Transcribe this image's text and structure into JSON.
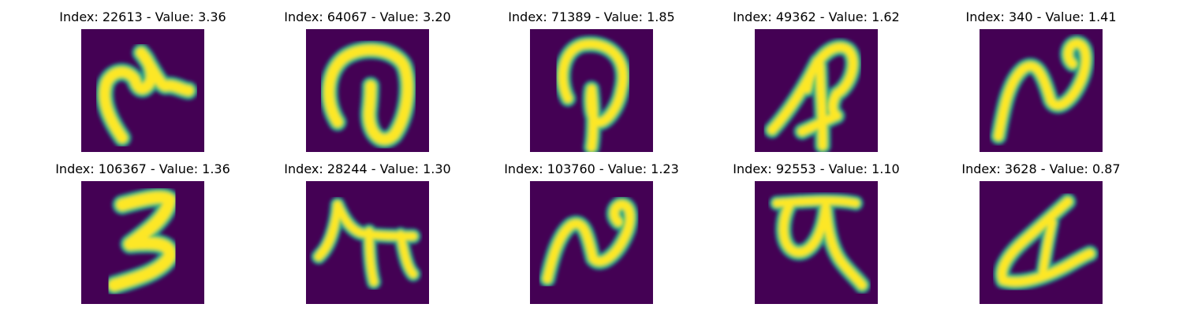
{
  "colors": {
    "background": "#440154",
    "stroke_outer": "#21918c",
    "stroke_mid": "#5ec962",
    "stroke_core": "#fde725"
  },
  "panels": [
    {
      "title": "Index: 22613 - Value: 3.36",
      "glyph": "hook-shape"
    },
    {
      "title": "Index: 64067 - Value: 3.20",
      "glyph": "loop-shape"
    },
    {
      "title": "Index: 71389 - Value: 1.85",
      "glyph": "p-shape"
    },
    {
      "title": "Index: 49362 - Value: 1.62",
      "glyph": "ap-shape"
    },
    {
      "title": "Index: 340 - Value: 1.41",
      "glyph": "wave-shape"
    },
    {
      "title": "Index: 106367 - Value: 1.36",
      "glyph": "three-shape"
    },
    {
      "title": "Index: 28244 - Value: 1.30",
      "glyph": "pi-shape"
    },
    {
      "title": "Index: 103760 - Value: 1.23",
      "glyph": "wave-shape"
    },
    {
      "title": "Index: 92553 - Value: 1.10",
      "glyph": "alpha-shape"
    },
    {
      "title": "Index: 3628 - Value: 0.87",
      "glyph": "triangle-shape"
    }
  ]
}
